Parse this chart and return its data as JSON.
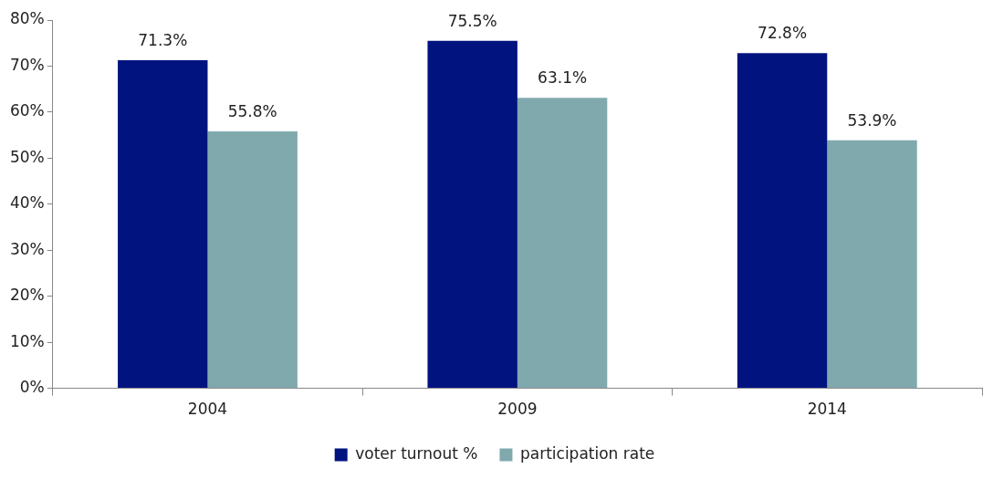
{
  "chart_data": {
    "type": "bar",
    "categories": [
      "2004",
      "2009",
      "2014"
    ],
    "series": [
      {
        "name": "voter turnout %",
        "color": "#00137f",
        "values": [
          71.3,
          75.5,
          72.8
        ],
        "value_labels": [
          "71.3%",
          "75.5%",
          "72.8%"
        ]
      },
      {
        "name": "participation rate",
        "color": "#80a9ae",
        "values": [
          55.8,
          63.1,
          53.9
        ],
        "value_labels": [
          "55.8%",
          "63.1%",
          "53.9%"
        ]
      }
    ],
    "ylim": [
      0,
      80
    ],
    "yticks": [
      {
        "value": 0,
        "label": "0%"
      },
      {
        "value": 10,
        "label": "10%"
      },
      {
        "value": 20,
        "label": "20%"
      },
      {
        "value": 30,
        "label": "30%"
      },
      {
        "value": 40,
        "label": "40%"
      },
      {
        "value": 50,
        "label": "50%"
      },
      {
        "value": 60,
        "label": "60%"
      },
      {
        "value": 70,
        "label": "70%"
      },
      {
        "value": 80,
        "label": "80%"
      }
    ],
    "grid": false,
    "legend": "bottom"
  }
}
